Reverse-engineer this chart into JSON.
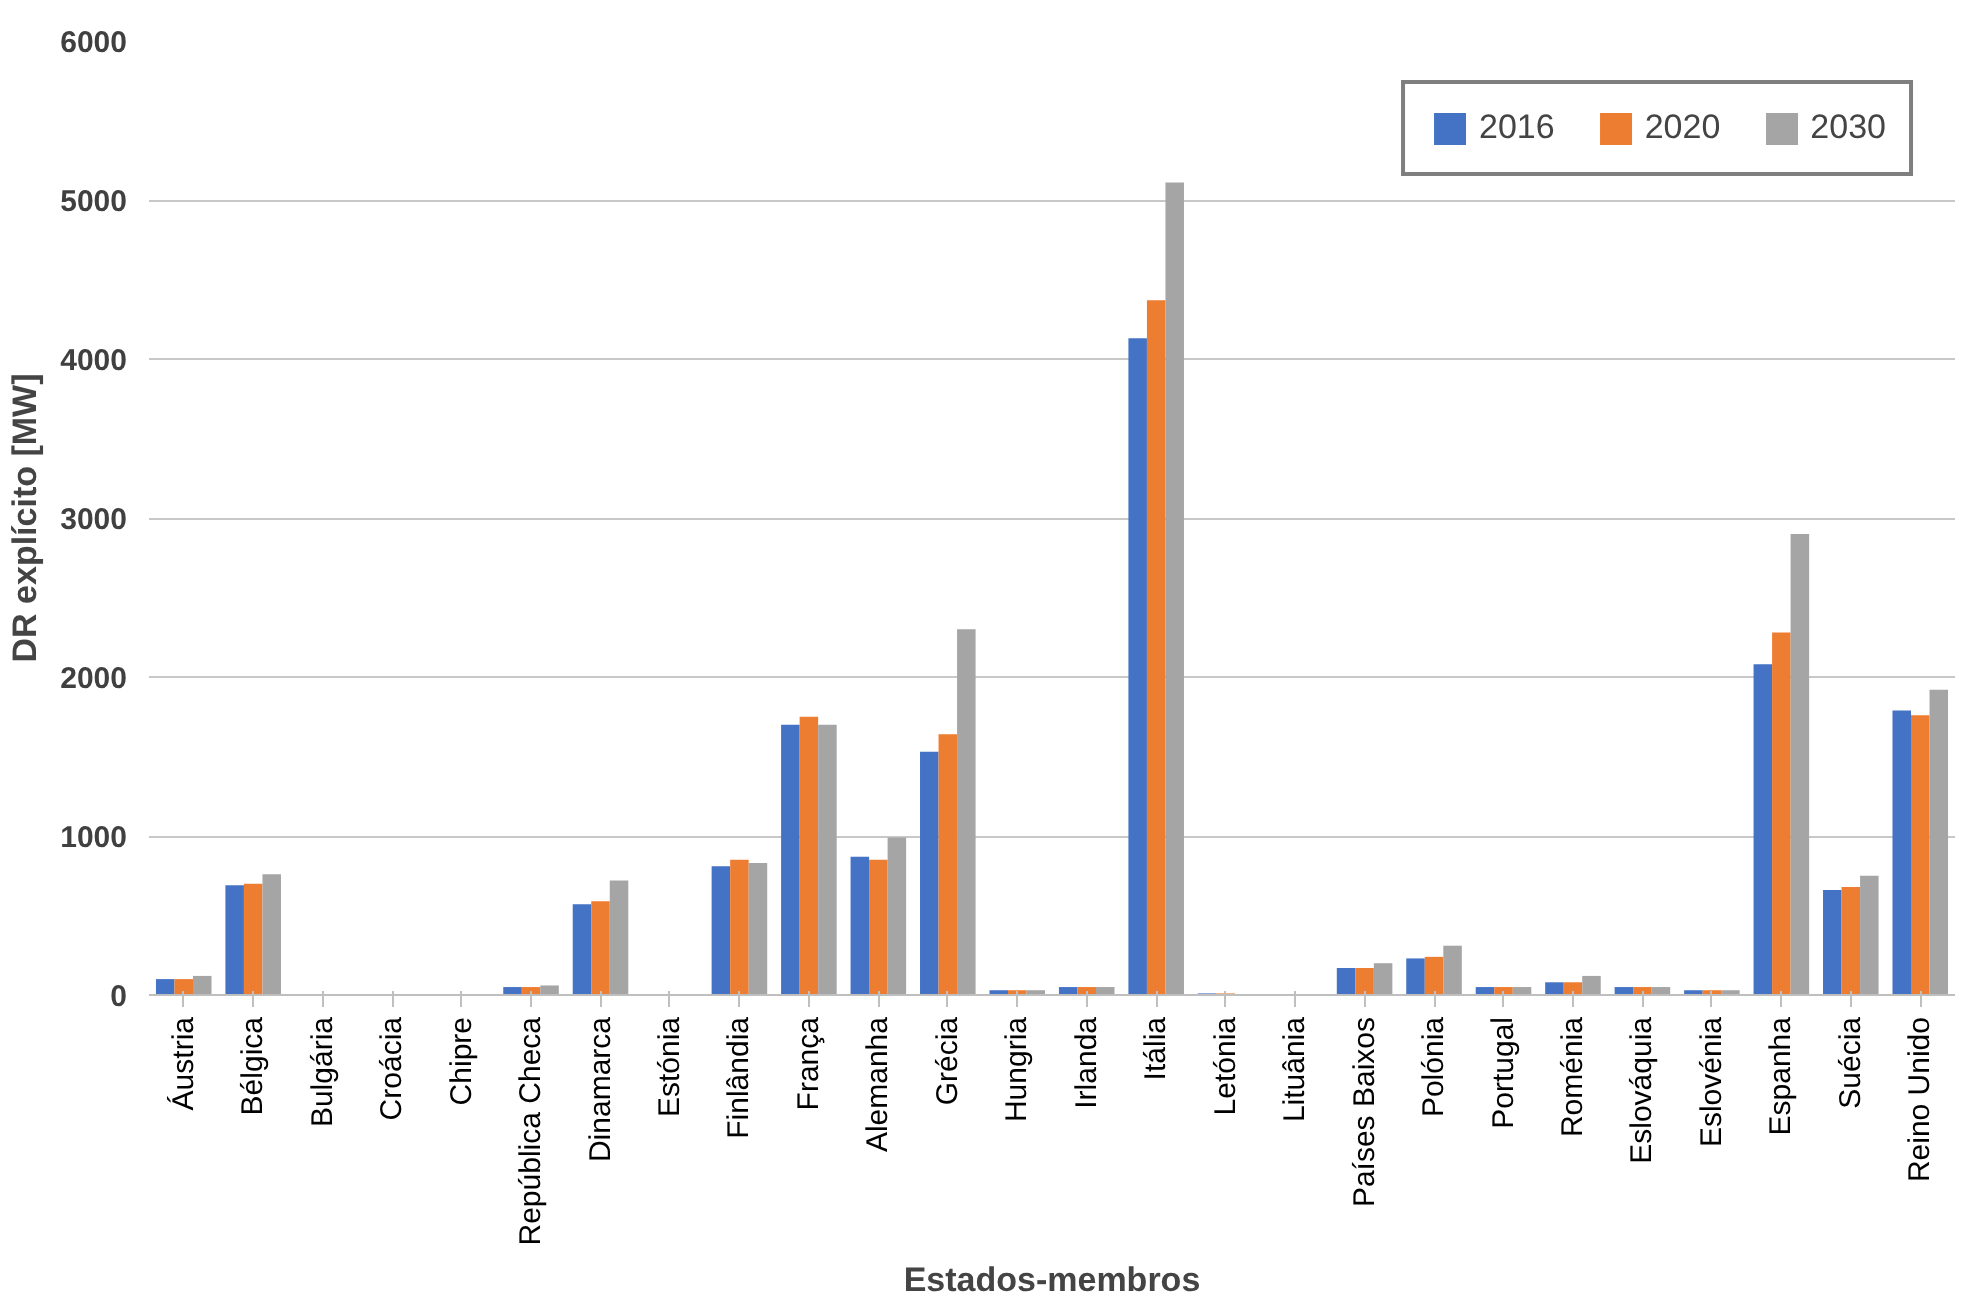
{
  "chart_data": {
    "type": "bar",
    "xlabel": "Estados-membros",
    "ylabel": "DR explícito [MW]",
    "categories": [
      "Áustria",
      "Bélgica",
      "Bulgária",
      "Croácia",
      "Chipre",
      "República Checa",
      "Dinamarca",
      "Estónia",
      "Finlândia",
      "França",
      "Alemanha",
      "Grécia",
      "Hungria",
      "Irlanda",
      "Itália",
      "Letónia",
      "Lituânia",
      "Países Baixos",
      "Polónia",
      "Portugal",
      "Roménia",
      "Eslováquia",
      "Eslovénia",
      "Espanha",
      "Suécia",
      "Reino Unido"
    ],
    "series": [
      {
        "name": "2016",
        "color": "#4472c4",
        "values": [
          100,
          690,
          0,
          0,
          0,
          50,
          570,
          0,
          810,
          1700,
          870,
          1530,
          30,
          50,
          4130,
          10,
          0,
          170,
          230,
          50,
          80,
          50,
          30,
          2080,
          660,
          1790
        ]
      },
      {
        "name": "2020",
        "color": "#ed7d31",
        "values": [
          100,
          700,
          0,
          0,
          0,
          50,
          590,
          0,
          850,
          1750,
          850,
          1640,
          30,
          50,
          4370,
          10,
          0,
          170,
          240,
          50,
          80,
          50,
          30,
          2280,
          680,
          1760
        ]
      },
      {
        "name": "2030",
        "color": "#a5a5a5",
        "values": [
          120,
          760,
          0,
          0,
          0,
          60,
          720,
          0,
          830,
          1700,
          990,
          2300,
          30,
          50,
          5110,
          null,
          0,
          200,
          310,
          50,
          120,
          50,
          30,
          2900,
          750,
          1920
        ]
      }
    ],
    "ylim": [
      0,
      6000
    ],
    "yticks": [
      0,
      1000,
      2000,
      3000,
      4000,
      5000,
      6000
    ],
    "grid": "y",
    "legend": "top right"
  }
}
